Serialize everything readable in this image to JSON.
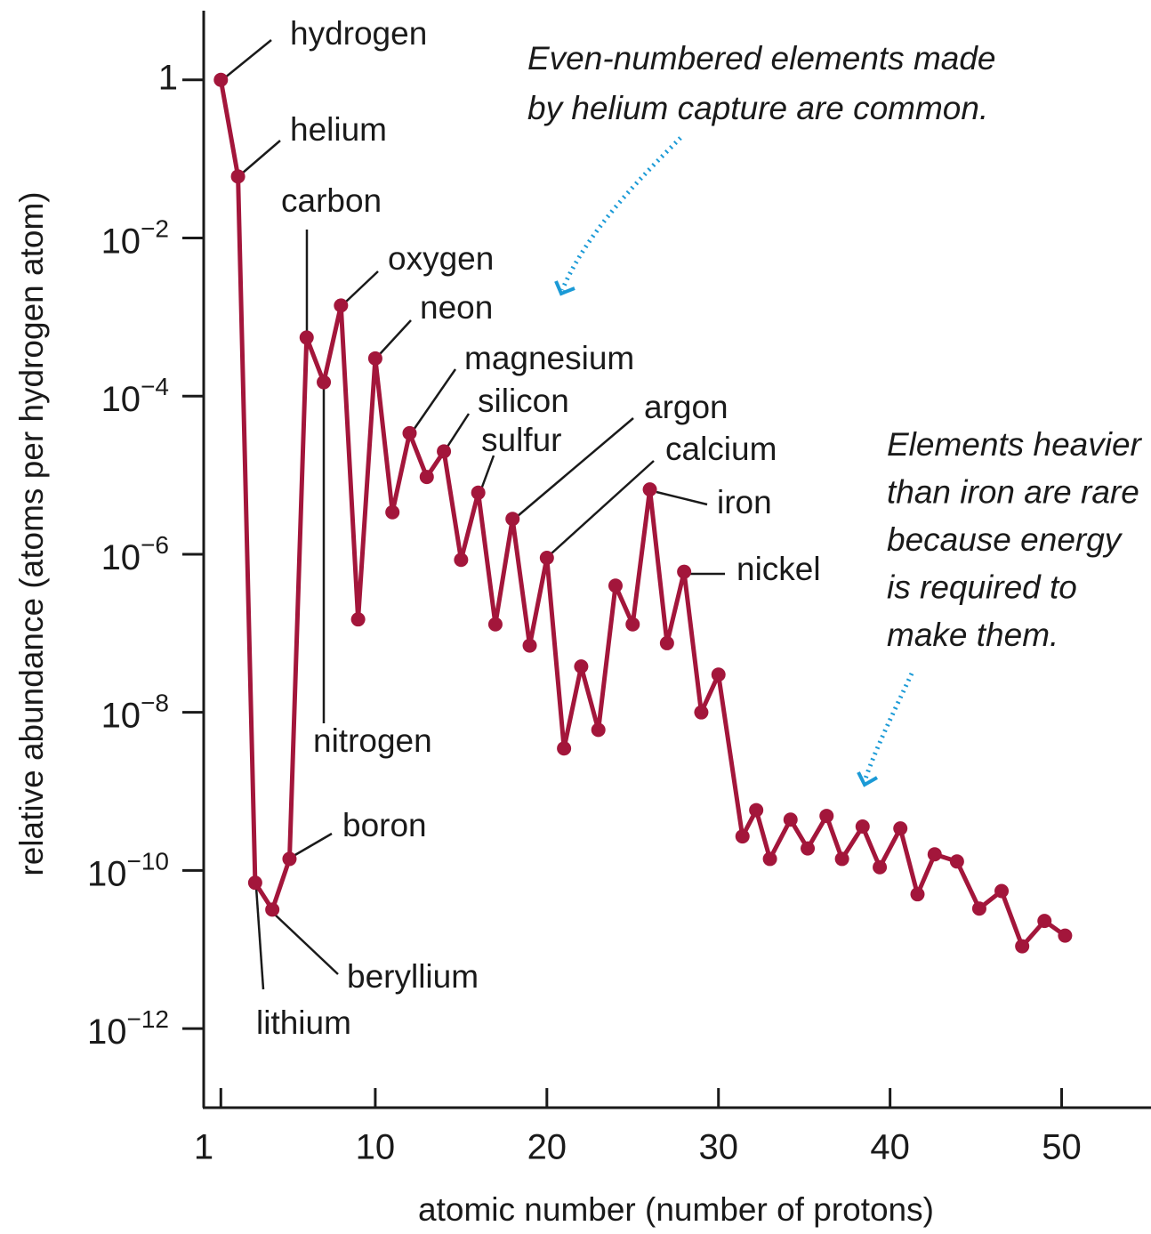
{
  "chart_data": {
    "type": "line",
    "xlabel": "atomic number (number of protons)",
    "ylabel": "relative abundance (atoms per hydrogen atom)",
    "yscale": "log",
    "xlim": [
      0,
      55
    ],
    "xticks": [
      1,
      10,
      20,
      30,
      40,
      50
    ],
    "ylim": [
      1e-13,
      7.5
    ],
    "yticks": [
      1,
      {
        "value": 0.01,
        "label": "10",
        "exponent": "−2"
      },
      {
        "value": 0.0001,
        "label": "10",
        "exponent": "−4"
      },
      {
        "value": 1e-06,
        "label": "10",
        "exponent": "−6"
      },
      {
        "value": 1e-08,
        "label": "10",
        "exponent": "−8"
      },
      {
        "value": 1e-10,
        "label": "10",
        "exponent": "−10"
      },
      {
        "value": 1e-12,
        "label": "10",
        "exponent": "−12"
      }
    ],
    "x": [
      1,
      2,
      3,
      4,
      5,
      6,
      7,
      8,
      9,
      10,
      11,
      12,
      13,
      14,
      15,
      16,
      17,
      18,
      19,
      20,
      21,
      22,
      23,
      24,
      25,
      26,
      27,
      28,
      29,
      30,
      31.4,
      32.2,
      33.0,
      34.2,
      35.2,
      36.3,
      37.2,
      38.4,
      39.4,
      40.6,
      41.6,
      42.6,
      43.9,
      45.2,
      46.5,
      47.7,
      49.0,
      50.2
    ],
    "series": [
      {
        "color": "#a3163b",
        "values": [
          1,
          0.06,
          7e-11,
          3.2e-11,
          1.4e-10,
          0.00055,
          0.00015,
          0.0014,
          1.5e-07,
          0.0003,
          3.4e-06,
          3.4e-05,
          9.5e-06,
          2e-05,
          8.5e-07,
          6e-06,
          1.3e-07,
          2.8e-06,
          7e-08,
          9e-07,
          3.5e-09,
          3.8e-08,
          6e-09,
          4e-07,
          1.3e-07,
          6.6e-06,
          7.5e-08,
          6e-07,
          1e-08,
          3e-08,
          2.7e-10,
          5.8e-10,
          1.4e-10,
          4.4e-10,
          1.9e-10,
          4.9e-10,
          1.4e-10,
          3.6e-10,
          1.1e-10,
          3.4e-10,
          5e-11,
          1.6e-10,
          1.3e-10,
          3.3e-11,
          5.5e-11,
          1.1e-11,
          2.3e-11,
          1.5e-11
        ]
      }
    ],
    "annotations": [
      "hydrogen",
      "helium",
      "carbon",
      "oxygen",
      "neon",
      "magnesium",
      "silicon",
      "sulfur",
      "argon",
      "calcium",
      "iron",
      "nickel",
      "nitrogen",
      "boron",
      "beryllium",
      "lithium"
    ],
    "callouts": [
      {
        "color": "#1b9ad6",
        "lines": [
          "Even-numbered elements made",
          "by helium capture are common."
        ]
      },
      {
        "color": "#1b9ad6",
        "lines": [
          "Elements heavier",
          "than iron are rare",
          "because energy",
          "is required to",
          "make them."
        ]
      }
    ]
  }
}
